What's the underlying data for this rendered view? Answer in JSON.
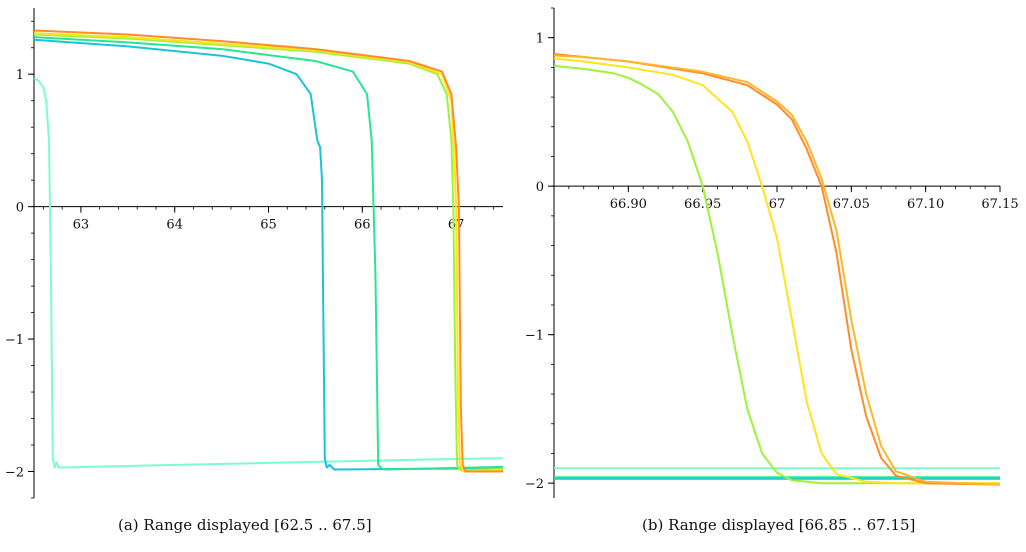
{
  "chart_data": [
    {
      "type": "line",
      "title": "",
      "xlabel": "",
      "ylabel": "",
      "xlim": [
        62.5,
        67.5
      ],
      "ylim": [
        -2.2,
        1.5
      ],
      "x_ticks": [
        63,
        64,
        65,
        66,
        67
      ],
      "x_tick_labels": [
        "63",
        "64",
        "65",
        "66",
        "67"
      ],
      "y_ticks": [
        -2,
        -1,
        0,
        1
      ],
      "y_tick_labels": [
        "−2",
        "−1",
        "0",
        "1"
      ],
      "caption": "(a) Range displayed [62.5 .. 67.5]",
      "series": [
        {
          "color": "#7ffbd0",
          "points": [
            [
              62.5,
              0.97
            ],
            [
              62.55,
              0.95
            ],
            [
              62.6,
              0.9
            ],
            [
              62.63,
              0.8
            ],
            [
              62.66,
              0.5
            ],
            [
              62.68,
              -0.5
            ],
            [
              62.7,
              -1.9
            ],
            [
              62.72,
              -1.97
            ],
            [
              62.74,
              -1.93
            ],
            [
              62.76,
              -1.97
            ],
            [
              62.8,
              -1.97
            ],
            [
              64,
              -1.95
            ],
            [
              65,
              -1.935
            ],
            [
              66,
              -1.92
            ],
            [
              67,
              -1.905
            ],
            [
              67.5,
              -1.9
            ]
          ]
        },
        {
          "color": "#19c4d8",
          "points": [
            [
              62.5,
              1.26
            ],
            [
              63.5,
              1.21
            ],
            [
              64.5,
              1.14
            ],
            [
              65,
              1.08
            ],
            [
              65.3,
              1.0
            ],
            [
              65.45,
              0.85
            ],
            [
              65.52,
              0.5
            ],
            [
              65.55,
              0.45
            ],
            [
              65.57,
              0.2
            ],
            [
              65.58,
              -0.5
            ],
            [
              65.6,
              -1.9
            ],
            [
              65.62,
              -1.97
            ],
            [
              65.65,
              -1.95
            ],
            [
              65.7,
              -1.985
            ],
            [
              67.5,
              -1.975
            ]
          ]
        },
        {
          "color": "#27e690",
          "points": [
            [
              62.5,
              1.28
            ],
            [
              63.5,
              1.24
            ],
            [
              64.5,
              1.19
            ],
            [
              65.5,
              1.1
            ],
            [
              65.9,
              1.02
            ],
            [
              66.05,
              0.85
            ],
            [
              66.1,
              0.5
            ],
            [
              66.14,
              -0.5
            ],
            [
              66.17,
              -1.95
            ],
            [
              66.2,
              -1.975
            ],
            [
              66.25,
              -1.985
            ],
            [
              67.5,
              -1.965
            ]
          ]
        },
        {
          "color": "#9ef23a",
          "points": [
            [
              62.5,
              1.3
            ],
            [
              63.5,
              1.27
            ],
            [
              64.5,
              1.22
            ],
            [
              65.5,
              1.17
            ],
            [
              66.5,
              1.08
            ],
            [
              66.8,
              1.0
            ],
            [
              66.9,
              0.85
            ],
            [
              66.95,
              0.5
            ],
            [
              66.97,
              0
            ],
            [
              66.99,
              -1.2
            ],
            [
              67.01,
              -1.95
            ],
            [
              67.05,
              -1.99
            ],
            [
              67.5,
              -1.98
            ]
          ]
        },
        {
          "color": "#ffe41c",
          "points": [
            [
              62.5,
              1.31
            ],
            [
              63.5,
              1.28
            ],
            [
              64.5,
              1.23
            ],
            [
              65.5,
              1.18
            ],
            [
              66.5,
              1.09
            ],
            [
              66.85,
              1.0
            ],
            [
              66.95,
              0.8
            ],
            [
              66.98,
              0.4
            ],
            [
              67.0,
              0
            ],
            [
              67.02,
              -1.4
            ],
            [
              67.04,
              -1.95
            ],
            [
              67.08,
              -2.0
            ],
            [
              67.5,
              -1.99
            ]
          ]
        },
        {
          "color": "#ff8b2a",
          "points": [
            [
              62.5,
              1.33
            ],
            [
              63.5,
              1.3
            ],
            [
              64.5,
              1.25
            ],
            [
              65.5,
              1.19
            ],
            [
              66.5,
              1.1
            ],
            [
              66.85,
              1.02
            ],
            [
              66.95,
              0.85
            ],
            [
              67.0,
              0.45
            ],
            [
              67.03,
              0
            ],
            [
              67.05,
              -1.5
            ],
            [
              67.07,
              -1.95
            ],
            [
              67.1,
              -2.0
            ],
            [
              67.5,
              -2.0
            ]
          ]
        }
      ]
    },
    {
      "type": "line",
      "title": "",
      "xlabel": "",
      "ylabel": "",
      "xlim": [
        66.85,
        67.15
      ],
      "ylim": [
        -2.1,
        1.2
      ],
      "x_ticks": [
        66.9,
        66.95,
        67,
        67.05,
        67.1,
        67.15
      ],
      "x_tick_labels": [
        "66.90",
        "66.95",
        "67",
        "67.05",
        "67.10",
        "67.15"
      ],
      "y_ticks": [
        -2,
        -1,
        0,
        1
      ],
      "y_tick_labels": [
        "−2",
        "−1",
        "0",
        "1"
      ],
      "caption": "(b) Range displayed [66.85 .. 67.15]",
      "series": [
        {
          "color": "#7ffbd0",
          "points": [
            [
              66.85,
              -1.9
            ],
            [
              67.15,
              -1.9
            ]
          ]
        },
        {
          "color": "#19c4d8",
          "points": [
            [
              66.85,
              -1.97
            ],
            [
              67.15,
              -1.97
            ]
          ]
        },
        {
          "color": "#27e690",
          "points": [
            [
              66.85,
              -1.96
            ],
            [
              67.15,
              -1.96
            ]
          ]
        },
        {
          "color": "#9ef23a",
          "points": [
            [
              66.85,
              0.81
            ],
            [
              66.87,
              0.79
            ],
            [
              66.89,
              0.76
            ],
            [
              66.9,
              0.73
            ],
            [
              66.91,
              0.68
            ],
            [
              66.92,
              0.62
            ],
            [
              66.93,
              0.5
            ],
            [
              66.94,
              0.3
            ],
            [
              66.95,
              0
            ],
            [
              66.96,
              -0.45
            ],
            [
              66.97,
              -1.0
            ],
            [
              66.98,
              -1.5
            ],
            [
              66.99,
              -1.8
            ],
            [
              67.0,
              -1.93
            ],
            [
              67.01,
              -1.98
            ],
            [
              67.03,
              -2.0
            ],
            [
              67.15,
              -2.0
            ]
          ]
        },
        {
          "color": "#ffe41c",
          "points": [
            [
              66.85,
              0.86
            ],
            [
              66.87,
              0.84
            ],
            [
              66.9,
              0.8
            ],
            [
              66.93,
              0.75
            ],
            [
              66.95,
              0.68
            ],
            [
              66.97,
              0.5
            ],
            [
              66.98,
              0.3
            ],
            [
              66.99,
              0
            ],
            [
              67.0,
              -0.35
            ],
            [
              67.01,
              -0.9
            ],
            [
              67.02,
              -1.45
            ],
            [
              67.03,
              -1.8
            ],
            [
              67.04,
              -1.94
            ],
            [
              67.06,
              -1.99
            ],
            [
              67.08,
              -2.0
            ],
            [
              67.15,
              -2.0
            ]
          ]
        },
        {
          "color": "#ff8b2a",
          "points": [
            [
              66.85,
              0.89
            ],
            [
              66.87,
              0.87
            ],
            [
              66.9,
              0.84
            ],
            [
              66.95,
              0.76
            ],
            [
              66.98,
              0.68
            ],
            [
              67.0,
              0.55
            ],
            [
              67.01,
              0.45
            ],
            [
              67.02,
              0.25
            ],
            [
              67.03,
              0
            ],
            [
              67.04,
              -0.45
            ],
            [
              67.05,
              -1.1
            ],
            [
              67.06,
              -1.55
            ],
            [
              67.07,
              -1.83
            ],
            [
              67.08,
              -1.95
            ],
            [
              67.1,
              -2.0
            ],
            [
              67.15,
              -2.01
            ]
          ]
        },
        {
          "color": "#ffb628",
          "points": [
            [
              66.85,
              0.88
            ],
            [
              66.87,
              0.87
            ],
            [
              66.9,
              0.84
            ],
            [
              66.95,
              0.77
            ],
            [
              66.98,
              0.7
            ],
            [
              67.0,
              0.57
            ],
            [
              67.01,
              0.48
            ],
            [
              67.02,
              0.3
            ],
            [
              67.03,
              0.05
            ],
            [
              67.04,
              -0.3
            ],
            [
              67.05,
              -0.9
            ],
            [
              67.06,
              -1.4
            ],
            [
              67.07,
              -1.75
            ],
            [
              67.08,
              -1.92
            ],
            [
              67.1,
              -1.99
            ],
            [
              67.15,
              -2.01
            ]
          ]
        }
      ]
    }
  ]
}
